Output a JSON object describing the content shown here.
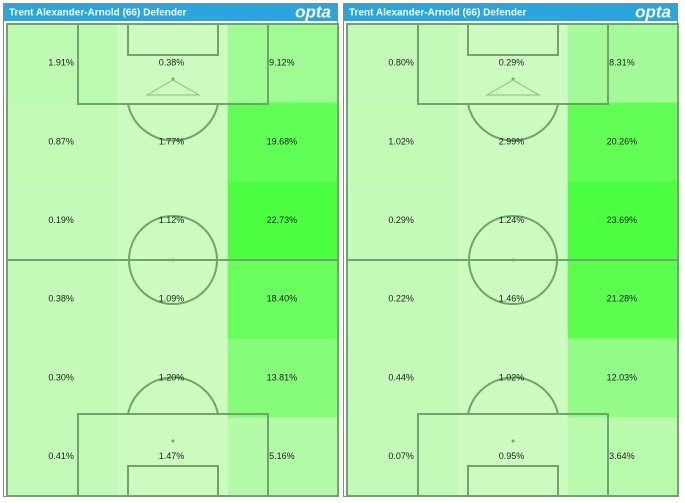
{
  "chart_data": [
    {
      "type": "heatmap",
      "title": "Trent Alexander-Arnold (66) Defender",
      "brand": "opta",
      "values": [
        [
          1.91,
          0.38,
          9.12
        ],
        [
          0.87,
          1.77,
          19.68
        ],
        [
          0.19,
          1.12,
          22.73
        ],
        [
          0.38,
          1.09,
          18.4
        ],
        [
          0.3,
          1.2,
          13.81
        ],
        [
          0.41,
          1.47,
          5.16
        ]
      ],
      "value_labels": [
        [
          "1.91%",
          "0.38%",
          "9.12%"
        ],
        [
          "0.87%",
          "1.77%",
          "19.68%"
        ],
        [
          "0.19%",
          "1.12%",
          "22.73%"
        ],
        [
          "0.38%",
          "1.09%",
          "18.40%"
        ],
        [
          "0.30%",
          "1.20%",
          "13.81%"
        ],
        [
          "0.41%",
          "1.47%",
          "5.16%"
        ]
      ]
    },
    {
      "type": "heatmap",
      "title": "Trent Alexander-Arnold (66) Defender",
      "brand": "opta",
      "values": [
        [
          0.8,
          0.29,
          8.31
        ],
        [
          1.02,
          2.99,
          20.26
        ],
        [
          0.29,
          1.24,
          23.69
        ],
        [
          0.22,
          1.46,
          21.28
        ],
        [
          0.44,
          1.02,
          12.03
        ],
        [
          0.07,
          0.95,
          3.64
        ]
      ],
      "value_labels": [
        [
          "0.80%",
          "0.29%",
          "8.31%"
        ],
        [
          "1.02%",
          "2.99%",
          "20.26%"
        ],
        [
          "0.29%",
          "1.24%",
          "23.69%"
        ],
        [
          "0.22%",
          "1.46%",
          "21.28%"
        ],
        [
          "0.44%",
          "1.02%",
          "12.03%"
        ],
        [
          "0.07%",
          "0.95%",
          "3.64%"
        ]
      ]
    }
  ]
}
